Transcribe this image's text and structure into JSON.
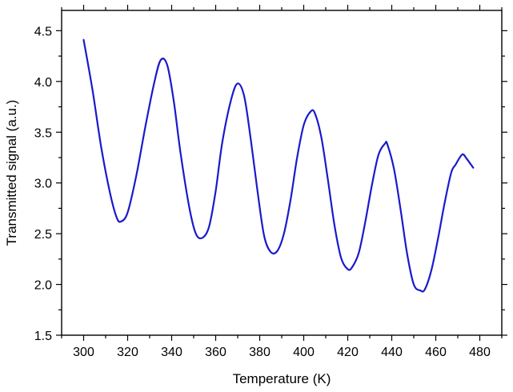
{
  "chart_data": {
    "type": "line",
    "title": "",
    "xlabel": "Temperature (K)",
    "ylabel": "Transmitted signal (a.u.)",
    "xlim": [
      290,
      490
    ],
    "ylim": [
      1.5,
      4.7
    ],
    "x_ticks": [
      300,
      320,
      340,
      360,
      380,
      400,
      420,
      440,
      460,
      480
    ],
    "y_ticks": [
      1.5,
      2.0,
      2.5,
      3.0,
      3.5,
      4.0,
      4.5
    ],
    "x_tick_labels": [
      "300",
      "320",
      "340",
      "360",
      "380",
      "400",
      "420",
      "440",
      "460",
      "480"
    ],
    "y_tick_labels": [
      "1.5",
      "2.0",
      "2.5",
      "3.0",
      "3.5",
      "4.0",
      "4.5"
    ],
    "grid": false,
    "legend": "none",
    "series": [
      {
        "color": "#1a1acc",
        "x": [
          300,
          304,
          308,
          312,
          315,
          317,
          320,
          324,
          328,
          332,
          335,
          338,
          341,
          344,
          348,
          351,
          354,
          357,
          360,
          363,
          367,
          370,
          373,
          376,
          379,
          382,
          385,
          388,
          391,
          394,
          397,
          400,
          403,
          405,
          408,
          411,
          414,
          417,
          420,
          422,
          425,
          428,
          431,
          434,
          437,
          438,
          441,
          444,
          447,
          450,
          453,
          455,
          458,
          461,
          464,
          467,
          469,
          472,
          474,
          477
        ],
        "y": [
          4.41,
          3.92,
          3.35,
          2.9,
          2.66,
          2.62,
          2.71,
          3.08,
          3.55,
          3.98,
          4.21,
          4.16,
          3.8,
          3.3,
          2.76,
          2.5,
          2.46,
          2.57,
          2.92,
          3.4,
          3.82,
          3.98,
          3.85,
          3.42,
          2.92,
          2.48,
          2.32,
          2.33,
          2.5,
          2.83,
          3.25,
          3.57,
          3.7,
          3.69,
          3.45,
          3.03,
          2.58,
          2.26,
          2.15,
          2.17,
          2.31,
          2.62,
          2.98,
          3.28,
          3.39,
          3.38,
          3.14,
          2.74,
          2.3,
          2.0,
          1.94,
          1.95,
          2.14,
          2.45,
          2.8,
          3.1,
          3.18,
          3.28,
          3.24,
          3.15
        ]
      }
    ]
  }
}
